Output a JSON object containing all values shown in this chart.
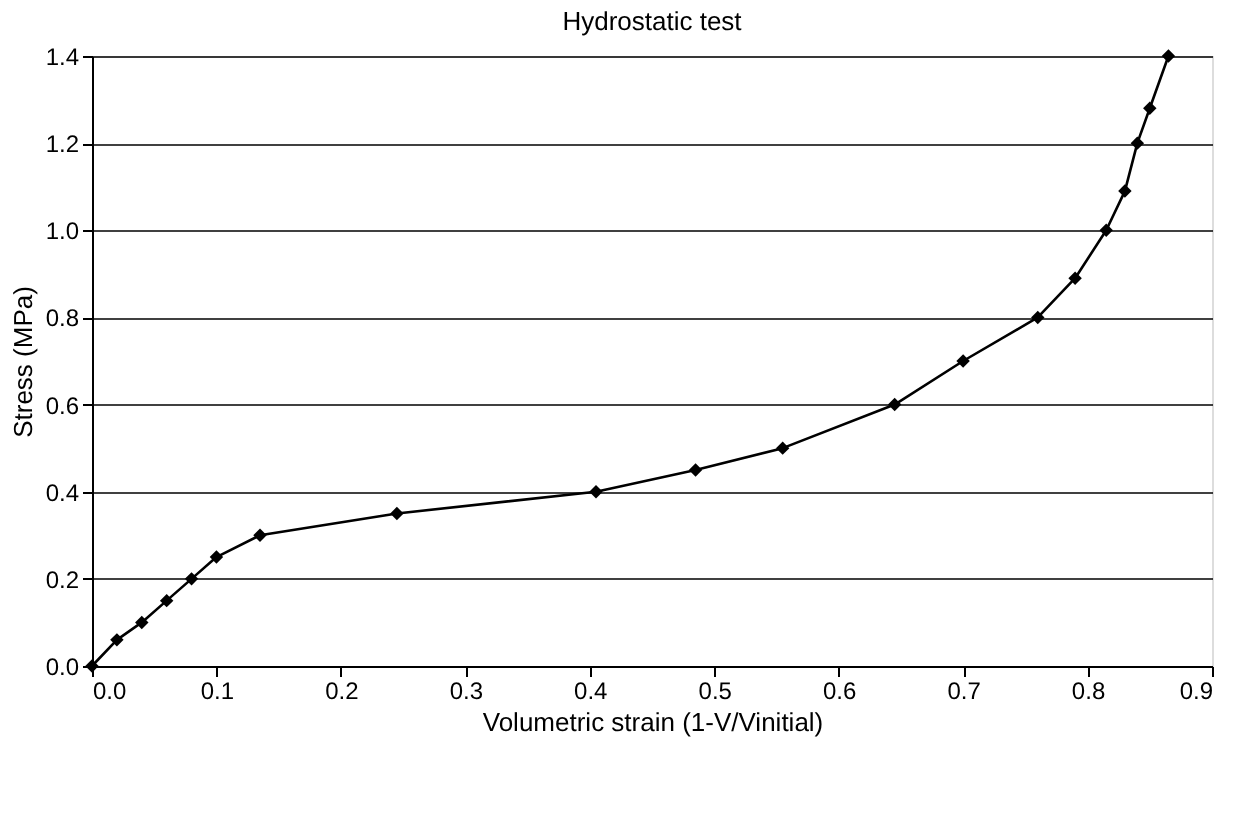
{
  "chart_data": {
    "type": "line",
    "title": "Hydrostatic test",
    "xlabel": "Volumetric strain (1-V/Vinitial)",
    "ylabel": "Stress (MPa)",
    "x": [
      0,
      0.02,
      0.04,
      0.06,
      0.08,
      0.1,
      0.135,
      0.245,
      0.405,
      0.485,
      0.555,
      0.645,
      0.7,
      0.76,
      0.79,
      0.815,
      0.83,
      0.84,
      0.85,
      0.865
    ],
    "series": [
      {
        "color": "#000000",
        "values": [
          0,
          0.06,
          0.1,
          0.15,
          0.2,
          0.25,
          0.3,
          0.35,
          0.4,
          0.45,
          0.5,
          0.6,
          0.7,
          0.8,
          0.89,
          1.0,
          1.09,
          1.2,
          1.28,
          1.4
        ]
      }
    ],
    "xlim": [
      0,
      0.9
    ],
    "xticks": [
      {
        "value": 0,
        "label": "0.0"
      },
      0.1,
      0.2,
      0.3,
      0.4,
      0.5,
      0.6,
      0.7,
      0.8,
      0.9
    ],
    "ylim": [
      0,
      1.4
    ],
    "yticks": [
      {
        "value": 0,
        "label": "0.0"
      },
      0.2,
      0.4,
      0.6,
      0.8,
      {
        "value": 1,
        "label": "1.0"
      },
      1.2,
      1.4
    ],
    "grid": "y",
    "marker": "diamond",
    "line_style": "solid"
  }
}
